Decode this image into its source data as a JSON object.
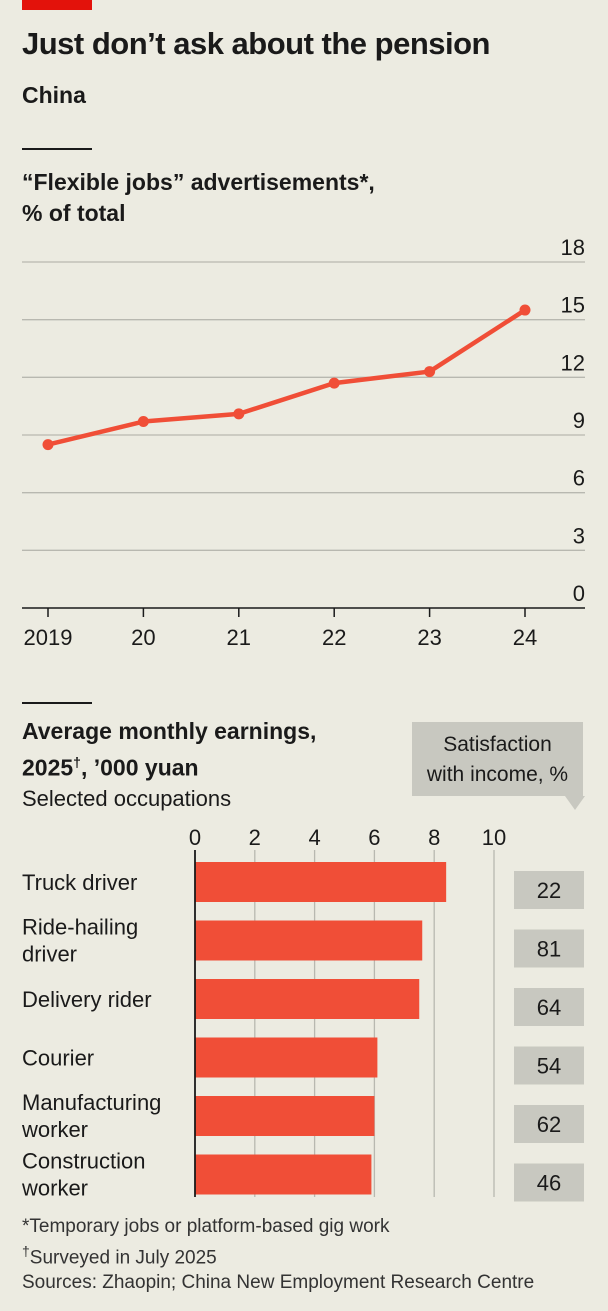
{
  "header": {
    "title": "Just don’t ask about the pension",
    "subtitle": "China"
  },
  "chart_data": [
    {
      "type": "line",
      "title_line1": "“Flexible jobs” advertisements*,",
      "title_line2": "% of total",
      "x": [
        "2019",
        "20",
        "21",
        "22",
        "23",
        "24"
      ],
      "series": [
        {
          "values": [
            8.5,
            9.7,
            10.1,
            11.7,
            12.3,
            15.5
          ]
        }
      ],
      "ylim": [
        0,
        18
      ],
      "yticks": [
        0,
        3,
        6,
        9,
        12,
        15,
        18
      ],
      "grid": true,
      "line_color": "#f04e37"
    },
    {
      "type": "bar",
      "title_line1": "Average monthly earnings,",
      "title_year": "2025",
      "title_sup": "†",
      "title_rest": ", ’000 yuan",
      "subtitle": "Selected occupations",
      "categories": [
        [
          "Truck driver"
        ],
        [
          "Ride-hailing",
          "driver"
        ],
        [
          "Delivery rider"
        ],
        [
          "Courier"
        ],
        [
          "Manufacturing",
          "worker"
        ],
        [
          "Construction",
          "worker"
        ]
      ],
      "values": [
        8.4,
        7.6,
        7.5,
        6.1,
        6.0,
        5.9
      ],
      "xlim": [
        0,
        10
      ],
      "xticks": [
        0,
        2,
        4,
        6,
        8,
        10
      ],
      "bar_color": "#f04e37",
      "satisfaction": {
        "header_line1": "Satisfaction",
        "header_line2": "with income, %",
        "values": [
          22,
          81,
          64,
          54,
          62,
          46
        ]
      }
    }
  ],
  "footnotes": {
    "note1": "*Temporary jobs or platform-based gig work",
    "note2_mark": "†",
    "note2_text": "Surveyed in July 2025",
    "sources": "Sources: Zhaopin; China New Employment Research Centre"
  }
}
